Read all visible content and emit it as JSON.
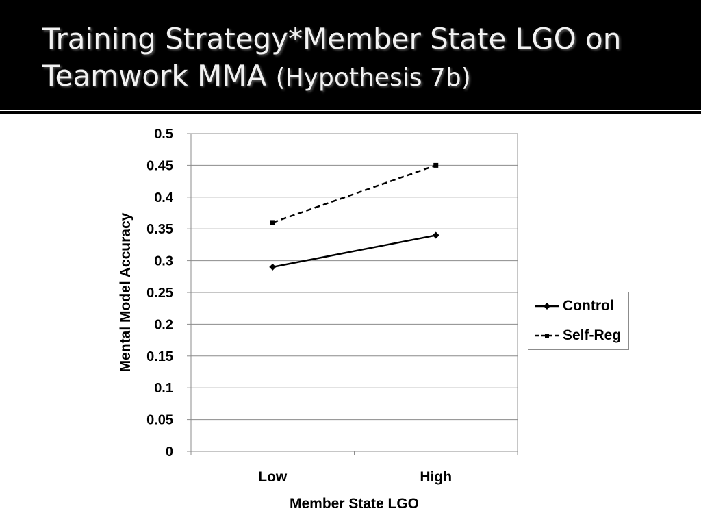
{
  "slide": {
    "title_main": "Training Strategy*Member State LGO on Teamwork MMA",
    "title_sub": "(Hypothesis 7b)"
  },
  "chart_data": {
    "type": "line",
    "categories": [
      "Low",
      "High"
    ],
    "series": [
      {
        "name": "Control",
        "values": [
          0.29,
          0.34
        ],
        "style": "solid",
        "marker": "diamond",
        "color": "#000000"
      },
      {
        "name": "Self-Reg",
        "values": [
          0.36,
          0.45
        ],
        "style": "dashed",
        "marker": "square",
        "color": "#000000"
      }
    ],
    "title": "",
    "xlabel": "Member State LGO",
    "ylabel": "Mental Model Accuracy",
    "ylim": [
      0,
      0.5
    ],
    "yticks": [
      "0",
      "0.05",
      "0.1",
      "0.15",
      "0.2",
      "0.25",
      "0.3",
      "0.35",
      "0.4",
      "0.45",
      "0.5"
    ],
    "grid": true,
    "legend": "right"
  }
}
